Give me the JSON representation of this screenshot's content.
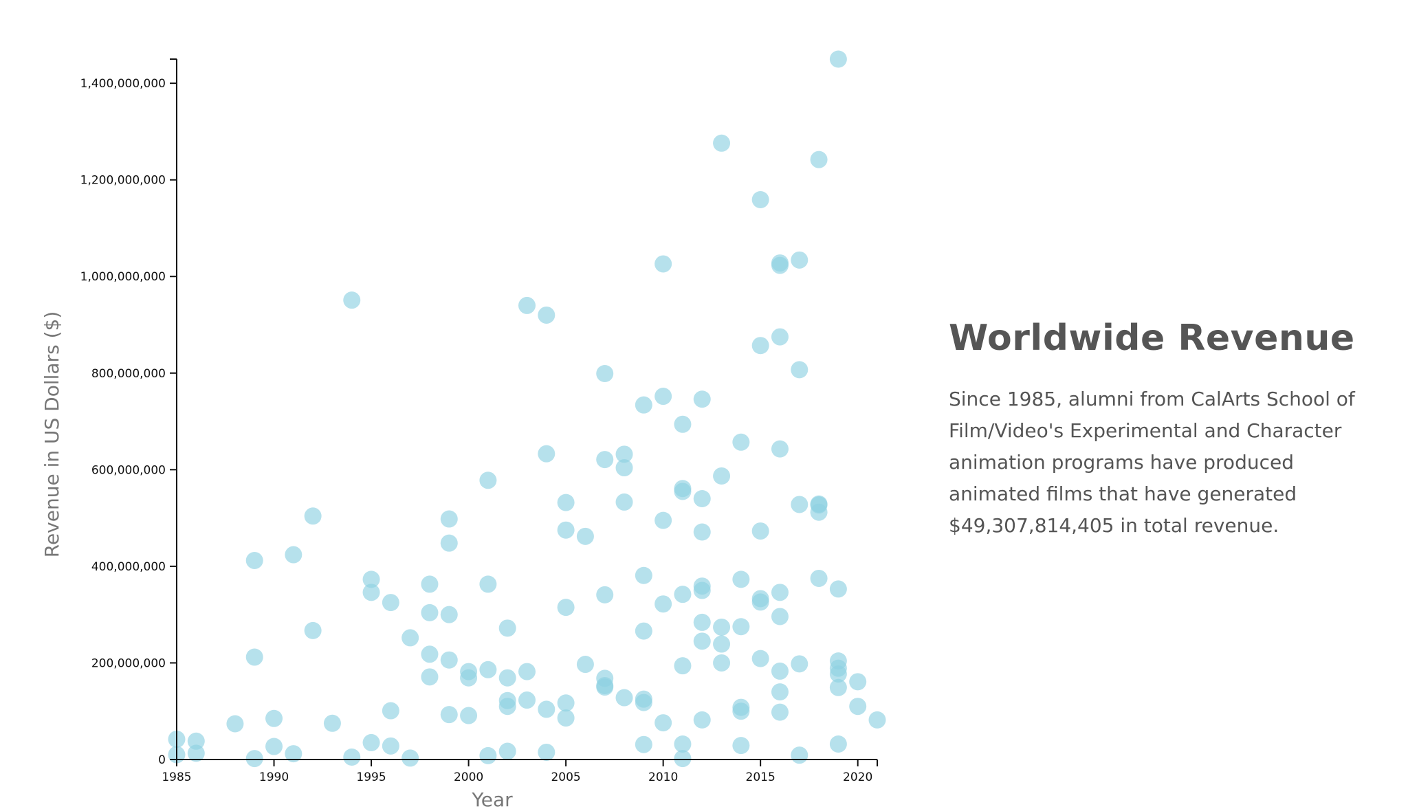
{
  "info": {
    "title": "Worldwide Revenue",
    "description": "Since 1985, alumni from CalArts School of Film/Video's Experimental and Character animation programs have produced animated films that have generated $49,307,814,405 in total revenue."
  },
  "colors": {
    "dot": "#8fd1e2",
    "axis": "#111111",
    "axis_title": "#777777",
    "text": "#555555"
  },
  "chart_data": {
    "type": "scatter",
    "xlabel": "Year",
    "ylabel": "Revenue in US Dollars ($)",
    "xlim": [
      1985,
      2021
    ],
    "ylim": [
      0,
      1450000000
    ],
    "x_ticks": [
      1985,
      1990,
      1995,
      2000,
      2005,
      2010,
      2015,
      2020
    ],
    "x_tick_labels": [
      "1985",
      "1990",
      "1995",
      "2000",
      "2005",
      "2010",
      "2015",
      "2020"
    ],
    "y_ticks": [
      0,
      200000000,
      400000000,
      600000000,
      800000000,
      1000000000,
      1200000000,
      1400000000
    ],
    "y_tick_labels": [
      "0",
      "200,000,000",
      "400,000,000",
      "600,000,000",
      "800,000,000",
      "1,000,000,000",
      "1,200,000,000",
      "1,400,000,000"
    ],
    "grid": false,
    "legend": "none",
    "points": [
      [
        1985,
        42000000
      ],
      [
        1985,
        10000000
      ],
      [
        1986,
        38000000
      ],
      [
        1986,
        13000000
      ],
      [
        1988,
        74000000
      ],
      [
        1989,
        412000000
      ],
      [
        1989,
        212000000
      ],
      [
        1989,
        2000000
      ],
      [
        1990,
        85000000
      ],
      [
        1990,
        27000000
      ],
      [
        1991,
        424000000
      ],
      [
        1991,
        12000000
      ],
      [
        1992,
        504000000
      ],
      [
        1992,
        267000000
      ],
      [
        1993,
        75000000
      ],
      [
        1994,
        951000000
      ],
      [
        1994,
        5000000
      ],
      [
        1995,
        373000000
      ],
      [
        1995,
        346000000
      ],
      [
        1995,
        35000000
      ],
      [
        1996,
        325000000
      ],
      [
        1996,
        101000000
      ],
      [
        1996,
        28000000
      ],
      [
        1997,
        252000000
      ],
      [
        1997,
        3000000
      ],
      [
        1998,
        363000000
      ],
      [
        1998,
        304000000
      ],
      [
        1998,
        218000000
      ],
      [
        1998,
        171000000
      ],
      [
        1999,
        498000000
      ],
      [
        1999,
        448000000
      ],
      [
        1999,
        300000000
      ],
      [
        1999,
        206000000
      ],
      [
        1999,
        93000000
      ],
      [
        2000,
        182000000
      ],
      [
        2000,
        169000000
      ],
      [
        2000,
        91000000
      ],
      [
        2001,
        578000000
      ],
      [
        2001,
        363000000
      ],
      [
        2001,
        186000000
      ],
      [
        2001,
        8000000
      ],
      [
        2002,
        272000000
      ],
      [
        2002,
        169000000
      ],
      [
        2002,
        122000000
      ],
      [
        2002,
        110000000
      ],
      [
        2002,
        17000000
      ],
      [
        2003,
        940000000
      ],
      [
        2003,
        182000000
      ],
      [
        2003,
        123000000
      ],
      [
        2004,
        920000000
      ],
      [
        2004,
        633000000
      ],
      [
        2004,
        104000000
      ],
      [
        2004,
        15000000
      ],
      [
        2005,
        532000000
      ],
      [
        2005,
        475000000
      ],
      [
        2005,
        315000000
      ],
      [
        2005,
        117000000
      ],
      [
        2005,
        86000000
      ],
      [
        2006,
        462000000
      ],
      [
        2006,
        197000000
      ],
      [
        2007,
        799000000
      ],
      [
        2007,
        621000000
      ],
      [
        2007,
        341000000
      ],
      [
        2007,
        168000000
      ],
      [
        2007,
        153000000
      ],
      [
        2007,
        150000000
      ],
      [
        2008,
        632000000
      ],
      [
        2008,
        604000000
      ],
      [
        2008,
        533000000
      ],
      [
        2008,
        128000000
      ],
      [
        2009,
        734000000
      ],
      [
        2009,
        381000000
      ],
      [
        2009,
        266000000
      ],
      [
        2009,
        125000000
      ],
      [
        2009,
        118000000
      ],
      [
        2009,
        31000000
      ],
      [
        2010,
        1026000000
      ],
      [
        2010,
        752000000
      ],
      [
        2010,
        495000000
      ],
      [
        2010,
        322000000
      ],
      [
        2010,
        76000000
      ],
      [
        2011,
        694000000
      ],
      [
        2011,
        561000000
      ],
      [
        2011,
        555000000
      ],
      [
        2011,
        342000000
      ],
      [
        2011,
        194000000
      ],
      [
        2011,
        32000000
      ],
      [
        2011,
        2000000
      ],
      [
        2012,
        746000000
      ],
      [
        2012,
        540000000
      ],
      [
        2012,
        471000000
      ],
      [
        2012,
        359000000
      ],
      [
        2012,
        350000000
      ],
      [
        2012,
        284000000
      ],
      [
        2012,
        245000000
      ],
      [
        2012,
        82000000
      ],
      [
        2013,
        1276000000
      ],
      [
        2013,
        587000000
      ],
      [
        2013,
        274000000
      ],
      [
        2013,
        239000000
      ],
      [
        2013,
        200000000
      ],
      [
        2014,
        657000000
      ],
      [
        2014,
        373000000
      ],
      [
        2014,
        275000000
      ],
      [
        2014,
        108000000
      ],
      [
        2014,
        100000000
      ],
      [
        2014,
        29000000
      ],
      [
        2015,
        1159000000
      ],
      [
        2015,
        857000000
      ],
      [
        2015,
        473000000
      ],
      [
        2015,
        333000000
      ],
      [
        2015,
        326000000
      ],
      [
        2015,
        209000000
      ],
      [
        2016,
        1028000000
      ],
      [
        2016,
        1023000000
      ],
      [
        2016,
        875000000
      ],
      [
        2016,
        643000000
      ],
      [
        2016,
        346000000
      ],
      [
        2016,
        296000000
      ],
      [
        2016,
        183000000
      ],
      [
        2016,
        140000000
      ],
      [
        2016,
        98000000
      ],
      [
        2017,
        1034000000
      ],
      [
        2017,
        807000000
      ],
      [
        2017,
        528000000
      ],
      [
        2017,
        198000000
      ],
      [
        2017,
        9000000
      ],
      [
        2018,
        1242000000
      ],
      [
        2018,
        529000000
      ],
      [
        2018,
        527000000
      ],
      [
        2018,
        512000000
      ],
      [
        2018,
        375000000
      ],
      [
        2019,
        1450000000
      ],
      [
        2019,
        353000000
      ],
      [
        2019,
        204000000
      ],
      [
        2019,
        189000000
      ],
      [
        2019,
        177000000
      ],
      [
        2019,
        149000000
      ],
      [
        2019,
        32000000
      ],
      [
        2020,
        161000000
      ],
      [
        2020,
        110000000
      ],
      [
        2021,
        82000000
      ]
    ]
  }
}
